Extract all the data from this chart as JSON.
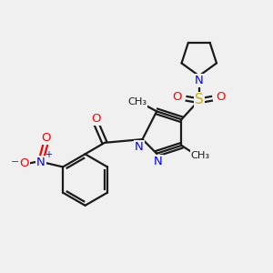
{
  "bg_color": "#f0f0f0",
  "line_color": "#1a1a1a",
  "blue_color": "#0000ff",
  "red_color": "#ff0000",
  "yellow_color": "#c8b400",
  "line_width": 1.6,
  "figsize": [
    3.0,
    3.0
  ],
  "dpi": 100,
  "xlim": [
    0,
    10
  ],
  "ylim": [
    0,
    10
  ]
}
